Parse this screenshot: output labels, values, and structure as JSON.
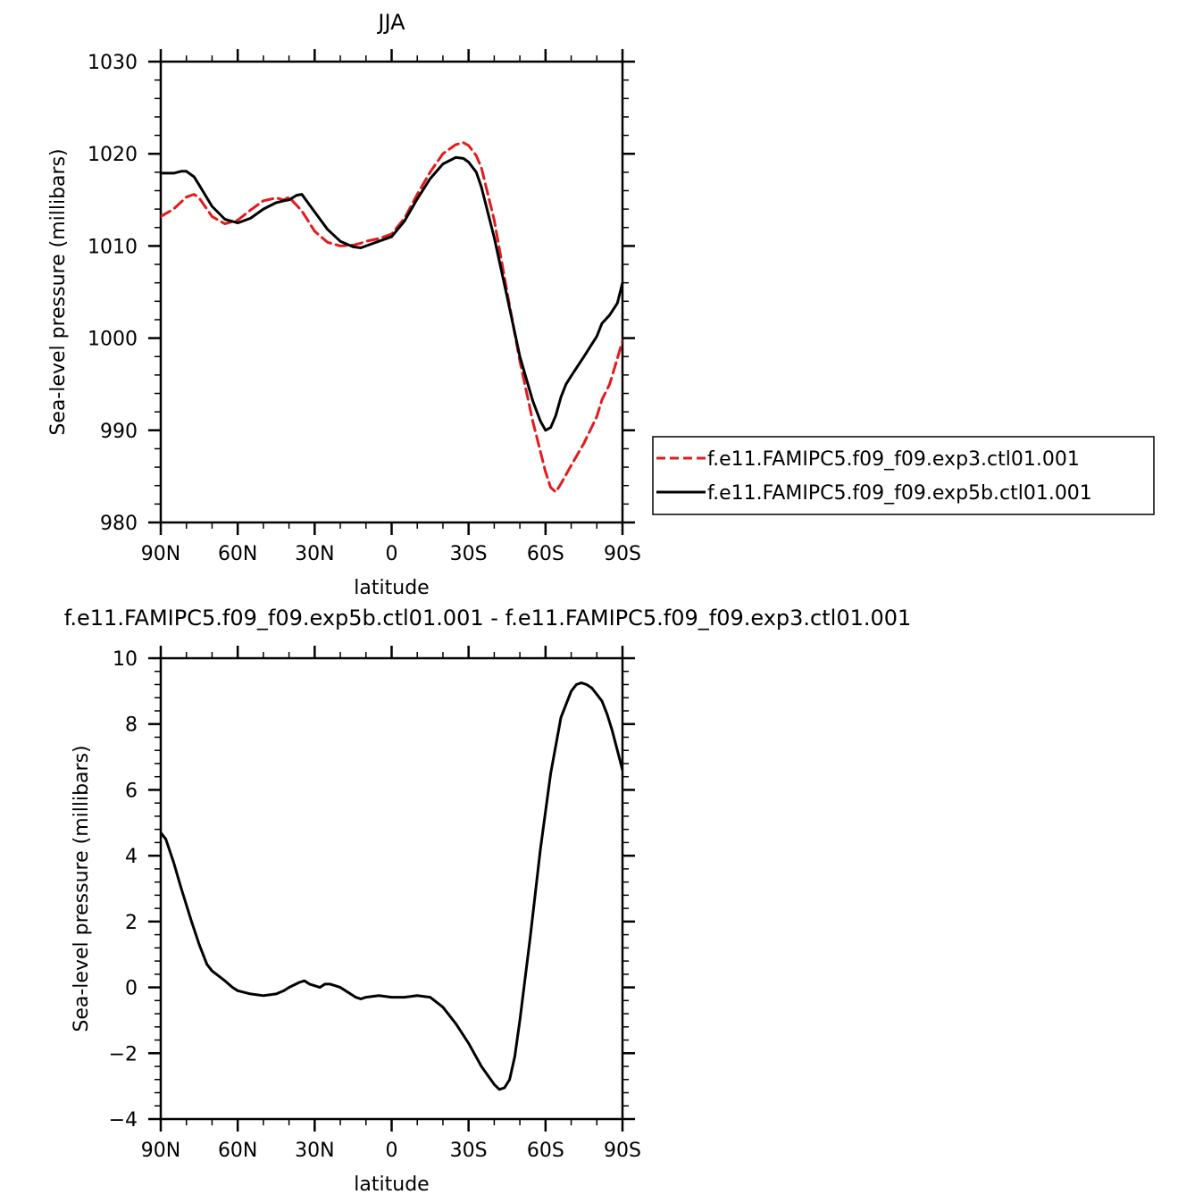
{
  "chart_data": [
    {
      "type": "line",
      "title": "JJA",
      "xlabel": "latitude",
      "ylabel": "Sea-level pressure (millibars)",
      "xlim": [
        90,
        -90
      ],
      "ylim": [
        980,
        1030
      ],
      "xticks": [
        90,
        60,
        30,
        0,
        -30,
        -60,
        -90
      ],
      "xtick_labels": [
        "90N",
        "60N",
        "30N",
        "0",
        "30S",
        "60S",
        "90S"
      ],
      "yticks": [
        980,
        990,
        1000,
        1010,
        1020,
        1030
      ],
      "ytick_labels": [
        "980",
        "990",
        "1000",
        "1010",
        "1020",
        "1030"
      ],
      "grid": false,
      "legend_position": "right",
      "series": [
        {
          "name": "f.e11.FAMIPC5.f09_f09.exp3.ctl01.001",
          "color": "#e41a1c",
          "dash": "dashed",
          "x": [
            90,
            85,
            80,
            77,
            75,
            70,
            65,
            60,
            55,
            50,
            45,
            42,
            40,
            35,
            30,
            25,
            20,
            15,
            12,
            10,
            5,
            0,
            -5,
            -10,
            -15,
            -20,
            -25,
            -28,
            -30,
            -33,
            -35,
            -40,
            -45,
            -50,
            -55,
            -60,
            -62,
            -64,
            -66,
            -70,
            -75,
            -80,
            -82,
            -85,
            -88,
            -90
          ],
          "y": [
            1013.2,
            1014.0,
            1015.3,
            1015.6,
            1015.2,
            1013.2,
            1012.4,
            1012.8,
            1013.9,
            1014.9,
            1015.2,
            1015.0,
            1015.3,
            1013.8,
            1011.6,
            1010.4,
            1010.0,
            1010.1,
            1010.3,
            1010.5,
            1010.8,
            1011.3,
            1013.0,
            1015.6,
            1018.0,
            1020.0,
            1021.0,
            1021.2,
            1020.9,
            1019.8,
            1018.5,
            1012.8,
            1005.0,
            997.5,
            991.0,
            985.5,
            983.8,
            983.3,
            984.2,
            986.2,
            988.6,
            991.5,
            993.3,
            995.0,
            997.8,
            999.7
          ]
        },
        {
          "name": "f.e11.FAMIPC5.f09_f09.exp5b.ctl01.001",
          "color": "#000000",
          "dash": "solid",
          "x": [
            90,
            85,
            82,
            80,
            77,
            75,
            70,
            65,
            60,
            55,
            50,
            45,
            42,
            40,
            37,
            35,
            30,
            25,
            20,
            15,
            12,
            10,
            5,
            0,
            -5,
            -10,
            -15,
            -20,
            -25,
            -28,
            -30,
            -33,
            -35,
            -40,
            -45,
            -50,
            -55,
            -58,
            -60,
            -62,
            -64,
            -66,
            -68,
            -70,
            -75,
            -80,
            -82,
            -85,
            -88,
            -90
          ],
          "y": [
            1017.9,
            1017.9,
            1018.1,
            1018.1,
            1017.5,
            1016.6,
            1014.3,
            1012.9,
            1012.5,
            1013.0,
            1014.0,
            1014.7,
            1014.9,
            1015.0,
            1015.5,
            1015.6,
            1013.7,
            1011.8,
            1010.5,
            1009.9,
            1009.8,
            1010.0,
            1010.5,
            1011.0,
            1012.7,
            1015.1,
            1017.3,
            1018.9,
            1019.6,
            1019.5,
            1019.1,
            1018.0,
            1016.4,
            1010.9,
            1004.5,
            998.0,
            993.2,
            991.0,
            990.0,
            990.3,
            991.6,
            993.6,
            995.0,
            995.9,
            998.0,
            1000.2,
            1001.6,
            1002.5,
            1003.8,
            1006.0
          ]
        }
      ]
    },
    {
      "type": "line",
      "title": "f.e11.FAMIPC5.f09_f09.exp5b.ctl01.001  -  f.e11.FAMIPC5.f09_f09.exp3.ctl01.001",
      "xlabel": "latitude",
      "ylabel": "Sea-level pressure (millibars)",
      "xlim": [
        90,
        -90
      ],
      "ylim": [
        -4,
        10
      ],
      "xticks": [
        90,
        60,
        30,
        0,
        -30,
        -60,
        -90
      ],
      "xtick_labels": [
        "90N",
        "60N",
        "30N",
        "0",
        "30S",
        "60S",
        "90S"
      ],
      "yticks": [
        -4,
        -2,
        0,
        2,
        4,
        6,
        8,
        10
      ],
      "ytick_labels": [
        "−4",
        "−2",
        "0",
        "2",
        "4",
        "6",
        "8",
        "10"
      ],
      "grid": false,
      "series": [
        {
          "color": "#000000",
          "dash": "solid",
          "x": [
            90,
            88,
            85,
            82,
            78,
            75,
            72,
            70,
            65,
            62,
            60,
            55,
            50,
            45,
            42,
            40,
            36,
            34,
            32,
            30,
            28,
            26,
            24,
            22,
            20,
            16,
            14,
            12,
            10,
            5,
            0,
            -5,
            -10,
            -15,
            -20,
            -25,
            -30,
            -35,
            -40,
            -42,
            -44,
            -46,
            -48,
            -50,
            -54,
            -58,
            -62,
            -66,
            -70,
            -72,
            -74,
            -76,
            -78,
            -80,
            -82,
            -84,
            -86,
            -88,
            -90
          ],
          "y": [
            4.7,
            4.5,
            3.8,
            3.0,
            2.0,
            1.3,
            0.7,
            0.5,
            0.2,
            0.0,
            -0.1,
            -0.2,
            -0.25,
            -0.2,
            -0.1,
            0.0,
            0.15,
            0.2,
            0.1,
            0.05,
            0.0,
            0.1,
            0.1,
            0.05,
            0.0,
            -0.2,
            -0.3,
            -0.35,
            -0.3,
            -0.25,
            -0.3,
            -0.3,
            -0.25,
            -0.3,
            -0.6,
            -1.1,
            -1.7,
            -2.4,
            -2.95,
            -3.1,
            -3.05,
            -2.8,
            -2.1,
            -1.0,
            1.5,
            4.2,
            6.5,
            8.2,
            9.0,
            9.2,
            9.25,
            9.2,
            9.1,
            8.9,
            8.7,
            8.3,
            7.8,
            7.2,
            6.6
          ]
        }
      ]
    }
  ]
}
